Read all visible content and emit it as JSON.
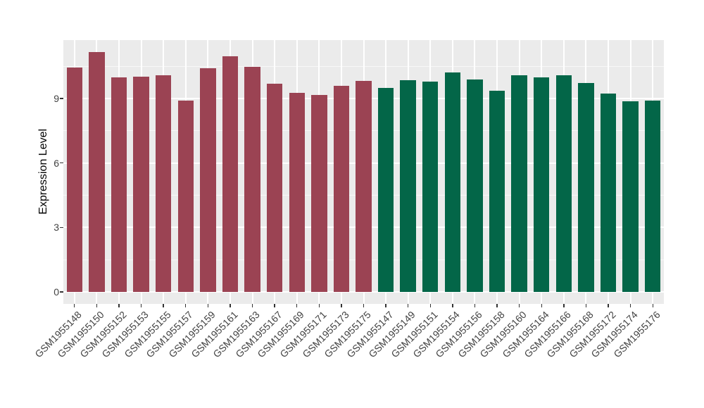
{
  "figure": {
    "background": "#FFFFFF",
    "panel_background": "#EBEBEB"
  },
  "chart_data": {
    "type": "bar",
    "title": "",
    "xlabel": "",
    "ylabel": "Expression Level",
    "yticks": [
      0,
      3,
      6,
      9
    ],
    "ylim": [
      0,
      11.16
    ],
    "grid": "on",
    "legend": "none",
    "gridline_color": "#FFFFFF",
    "colors": {
      "group1": "#9B4353",
      "group2": "#036648"
    },
    "categories": [
      "GSM1955148",
      "GSM1955150",
      "GSM1955152",
      "GSM1955153",
      "GSM1955155",
      "GSM1955157",
      "GSM1955159",
      "GSM1955161",
      "GSM1955163",
      "GSM1955167",
      "GSM1955169",
      "GSM1955171",
      "GSM1955173",
      "GSM1955175",
      "GSM1955147",
      "GSM1955149",
      "GSM1955151",
      "GSM1955154",
      "GSM1955156",
      "GSM1955158",
      "GSM1955160",
      "GSM1955164",
      "GSM1955166",
      "GSM1955168",
      "GSM1955172",
      "GSM1955174",
      "GSM1955176"
    ],
    "values": [
      10.44,
      11.16,
      9.98,
      10.01,
      10.09,
      8.9,
      10.42,
      10.97,
      10.46,
      9.68,
      9.25,
      9.16,
      9.59,
      9.83,
      9.49,
      9.84,
      9.78,
      10.21,
      9.89,
      9.36,
      10.09,
      9.98,
      10.07,
      9.71,
      9.22,
      8.86,
      8.92
    ],
    "groups": [
      "group1",
      "group1",
      "group1",
      "group1",
      "group1",
      "group1",
      "group1",
      "group1",
      "group1",
      "group1",
      "group1",
      "group1",
      "group1",
      "group1",
      "group2",
      "group2",
      "group2",
      "group2",
      "group2",
      "group2",
      "group2",
      "group2",
      "group2",
      "group2",
      "group2",
      "group2",
      "group2"
    ],
    "minor_yticks": [
      1.5,
      4.5,
      7.5,
      10.5
    ]
  }
}
